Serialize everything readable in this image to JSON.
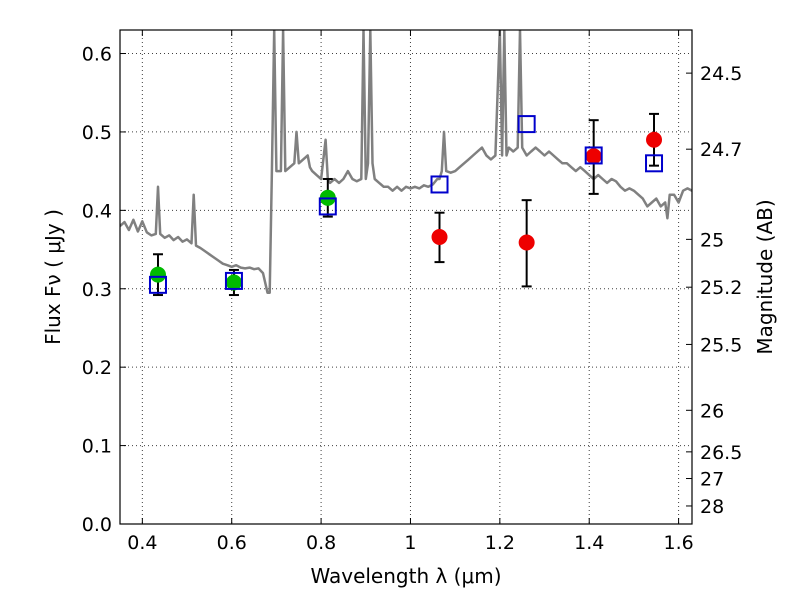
{
  "chart_data": {
    "type": "scatter",
    "title": "",
    "xlabel": "Wavelength  λ (μm)",
    "ylabel": "Flux  Fν  ( μJy )",
    "y2label": "Magnitude (AB)",
    "xlim": [
      0.35,
      1.63
    ],
    "ylim": [
      0.0,
      0.63
    ],
    "grid": true,
    "x_ticks": [
      0.4,
      0.6,
      0.8,
      1.0,
      1.2,
      1.4,
      1.6
    ],
    "x_tick_labels": [
      "0.4",
      "0.6",
      "0.8",
      "1",
      "1.2",
      "1.4",
      "1.6"
    ],
    "y_ticks": [
      0.0,
      0.1,
      0.2,
      0.3,
      0.4,
      0.5,
      0.6
    ],
    "y_tick_labels": [
      "0.0",
      "0.1",
      "0.2",
      "0.3",
      "0.4",
      "0.5",
      "0.6"
    ],
    "magnitude_ticks": [
      {
        "flux": 0.575,
        "label": "24.5"
      },
      {
        "flux": 0.478,
        "label": "24.7"
      },
      {
        "flux": 0.363,
        "label": "25"
      },
      {
        "flux": 0.302,
        "label": "25.2"
      },
      {
        "flux": 0.229,
        "label": "25.5"
      },
      {
        "flux": 0.145,
        "label": "26"
      },
      {
        "flux": 0.092,
        "label": "26.5"
      },
      {
        "flux": 0.058,
        "label": "27"
      },
      {
        "flux": 0.023,
        "label": "28"
      }
    ],
    "colors": {
      "model": "#808080",
      "optical_points": "#00bb00",
      "ir_points": "#ee0000",
      "model_photometry": "#0000cc",
      "error_bars": "#000000"
    },
    "series": [
      {
        "type": "line",
        "points": [
          [
            0.35,
            0.38
          ],
          [
            0.36,
            0.385
          ],
          [
            0.37,
            0.375
          ],
          [
            0.38,
            0.388
          ],
          [
            0.39,
            0.373
          ],
          [
            0.4,
            0.386
          ],
          [
            0.41,
            0.372
          ],
          [
            0.42,
            0.368
          ],
          [
            0.43,
            0.37
          ],
          [
            0.435,
            0.43
          ],
          [
            0.44,
            0.37
          ],
          [
            0.45,
            0.365
          ],
          [
            0.46,
            0.368
          ],
          [
            0.47,
            0.362
          ],
          [
            0.48,
            0.366
          ],
          [
            0.49,
            0.36
          ],
          [
            0.5,
            0.363
          ],
          [
            0.51,
            0.358
          ],
          [
            0.515,
            0.42
          ],
          [
            0.52,
            0.355
          ],
          [
            0.53,
            0.352
          ],
          [
            0.54,
            0.348
          ],
          [
            0.55,
            0.344
          ],
          [
            0.56,
            0.34
          ],
          [
            0.57,
            0.336
          ],
          [
            0.58,
            0.332
          ],
          [
            0.59,
            0.33
          ],
          [
            0.6,
            0.328
          ],
          [
            0.61,
            0.33
          ],
          [
            0.62,
            0.327
          ],
          [
            0.63,
            0.326
          ],
          [
            0.64,
            0.327
          ],
          [
            0.65,
            0.325
          ],
          [
            0.66,
            0.326
          ],
          [
            0.67,
            0.32
          ],
          [
            0.68,
            0.295
          ],
          [
            0.685,
            0.295
          ],
          [
            0.69,
            0.45
          ],
          [
            0.695,
            0.63
          ],
          [
            0.7,
            0.45
          ],
          [
            0.71,
            0.45
          ],
          [
            0.715,
            0.63
          ],
          [
            0.72,
            0.45
          ],
          [
            0.73,
            0.455
          ],
          [
            0.74,
            0.46
          ],
          [
            0.745,
            0.5
          ],
          [
            0.75,
            0.46
          ],
          [
            0.76,
            0.465
          ],
          [
            0.77,
            0.47
          ],
          [
            0.775,
            0.455
          ],
          [
            0.78,
            0.45
          ],
          [
            0.79,
            0.445
          ],
          [
            0.8,
            0.44
          ],
          [
            0.81,
            0.49
          ],
          [
            0.815,
            0.44
          ],
          [
            0.82,
            0.435
          ],
          [
            0.83,
            0.44
          ],
          [
            0.84,
            0.435
          ],
          [
            0.85,
            0.44
          ],
          [
            0.86,
            0.45
          ],
          [
            0.87,
            0.44
          ],
          [
            0.88,
            0.437
          ],
          [
            0.89,
            0.44
          ],
          [
            0.895,
            0.63
          ],
          [
            0.9,
            0.44
          ],
          [
            0.905,
            0.46
          ],
          [
            0.91,
            0.63
          ],
          [
            0.915,
            0.46
          ],
          [
            0.92,
            0.44
          ],
          [
            0.93,
            0.435
          ],
          [
            0.94,
            0.43
          ],
          [
            0.95,
            0.43
          ],
          [
            0.96,
            0.425
          ],
          [
            0.97,
            0.43
          ],
          [
            0.98,
            0.425
          ],
          [
            0.99,
            0.43
          ],
          [
            1.0,
            0.428
          ],
          [
            1.01,
            0.43
          ],
          [
            1.02,
            0.428
          ],
          [
            1.03,
            0.432
          ],
          [
            1.04,
            0.43
          ],
          [
            1.05,
            0.433
          ],
          [
            1.06,
            0.44
          ],
          [
            1.065,
            0.44
          ],
          [
            1.07,
            0.45
          ],
          [
            1.075,
            0.5
          ],
          [
            1.08,
            0.45
          ],
          [
            1.09,
            0.448
          ],
          [
            1.1,
            0.45
          ],
          [
            1.11,
            0.455
          ],
          [
            1.12,
            0.46
          ],
          [
            1.13,
            0.465
          ],
          [
            1.14,
            0.47
          ],
          [
            1.15,
            0.475
          ],
          [
            1.16,
            0.48
          ],
          [
            1.17,
            0.47
          ],
          [
            1.18,
            0.465
          ],
          [
            1.19,
            0.47
          ],
          [
            1.2,
            0.63
          ],
          [
            1.205,
            0.47
          ],
          [
            1.21,
            0.63
          ],
          [
            1.215,
            0.47
          ],
          [
            1.22,
            0.48
          ],
          [
            1.23,
            0.475
          ],
          [
            1.24,
            0.48
          ],
          [
            1.245,
            0.63
          ],
          [
            1.25,
            0.48
          ],
          [
            1.26,
            0.47
          ],
          [
            1.27,
            0.475
          ],
          [
            1.28,
            0.48
          ],
          [
            1.29,
            0.475
          ],
          [
            1.3,
            0.47
          ],
          [
            1.31,
            0.475
          ],
          [
            1.32,
            0.47
          ],
          [
            1.33,
            0.465
          ],
          [
            1.34,
            0.46
          ],
          [
            1.35,
            0.46
          ],
          [
            1.36,
            0.455
          ],
          [
            1.37,
            0.45
          ],
          [
            1.38,
            0.455
          ],
          [
            1.39,
            0.45
          ],
          [
            1.4,
            0.445
          ],
          [
            1.41,
            0.44
          ],
          [
            1.42,
            0.445
          ],
          [
            1.43,
            0.44
          ],
          [
            1.44,
            0.435
          ],
          [
            1.45,
            0.44
          ],
          [
            1.46,
            0.437
          ],
          [
            1.47,
            0.43
          ],
          [
            1.48,
            0.425
          ],
          [
            1.49,
            0.428
          ],
          [
            1.5,
            0.425
          ],
          [
            1.51,
            0.42
          ],
          [
            1.52,
            0.415
          ],
          [
            1.53,
            0.405
          ],
          [
            1.54,
            0.41
          ],
          [
            1.55,
            0.415
          ],
          [
            1.56,
            0.405
          ],
          [
            1.57,
            0.41
          ],
          [
            1.575,
            0.39
          ],
          [
            1.58,
            0.42
          ],
          [
            1.59,
            0.42
          ],
          [
            1.6,
            0.41
          ],
          [
            1.61,
            0.425
          ],
          [
            1.62,
            0.428
          ],
          [
            1.63,
            0.425
          ]
        ]
      },
      {
        "type": "points",
        "marker": "circle",
        "color": "#00bb00",
        "x": [
          0.435,
          0.605,
          0.815
        ],
        "y": [
          0.318,
          0.308,
          0.416
        ],
        "err_low": [
          0.292,
          0.292,
          0.392
        ],
        "err_high": [
          0.344,
          0.324,
          0.44
        ]
      },
      {
        "type": "points",
        "marker": "circle",
        "color": "#ee0000",
        "x": [
          1.065,
          1.26,
          1.41,
          1.545
        ],
        "y": [
          0.366,
          0.359,
          0.469,
          0.49
        ],
        "err_low": [
          0.334,
          0.303,
          0.421,
          0.457
        ],
        "err_high": [
          0.397,
          0.413,
          0.515,
          0.523
        ]
      },
      {
        "type": "points",
        "marker": "square",
        "color": "#0000cc",
        "x": [
          0.435,
          0.605,
          0.815,
          1.065,
          1.26,
          1.41,
          1.545
        ],
        "y": [
          0.305,
          0.31,
          0.405,
          0.433,
          0.51,
          0.47,
          0.46
        ]
      }
    ]
  }
}
